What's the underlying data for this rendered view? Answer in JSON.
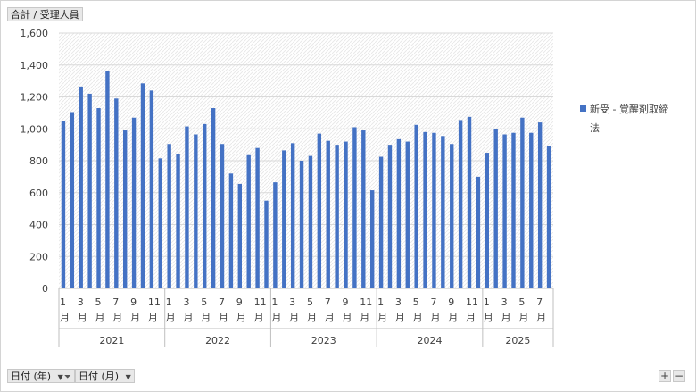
{
  "value_field_label": "合計 / 受理人員",
  "filter_buttons": [
    {
      "label": "日付 (年)",
      "has_filter": true
    },
    {
      "label": "日付 (月)",
      "has_filter": false
    }
  ],
  "zoom": {
    "plus": "+",
    "minus": "−"
  },
  "colors": {
    "bar": "#4472C4",
    "grid": "#d9d9d9",
    "axis": "#bfbfbf",
    "text": "#404040"
  },
  "chart_data": {
    "type": "bar",
    "ylim": [
      0,
      1600
    ],
    "yticks": [
      "0",
      "200",
      "400",
      "600",
      "800",
      "1,000",
      "1,200",
      "1,400",
      "1,600"
    ],
    "ytick_values": [
      0,
      200,
      400,
      600,
      800,
      1000,
      1200,
      1400,
      1600
    ],
    "legend": "新受 - 覚醒剤取締法",
    "month_suffix": "月",
    "years": [
      {
        "label": "2021",
        "months": [
          1,
          2,
          3,
          4,
          5,
          6,
          7,
          8,
          9,
          10,
          11,
          12
        ]
      },
      {
        "label": "2022",
        "months": [
          1,
          2,
          3,
          4,
          5,
          6,
          7,
          8,
          9,
          10,
          11,
          12
        ]
      },
      {
        "label": "2023",
        "months": [
          1,
          2,
          3,
          4,
          5,
          6,
          7,
          8,
          9,
          10,
          11,
          12
        ]
      },
      {
        "label": "2024",
        "months": [
          1,
          2,
          3,
          4,
          5,
          6,
          7,
          8,
          9,
          10,
          11,
          12
        ]
      },
      {
        "label": "2025",
        "months": [
          1,
          2,
          3,
          4,
          5,
          6,
          7,
          8
        ]
      }
    ],
    "series": [
      {
        "name": "新受 - 覚醒剤取締法",
        "values": [
          1050,
          1105,
          1265,
          1220,
          1130,
          1360,
          1190,
          990,
          1070,
          1285,
          1240,
          815,
          905,
          840,
          1015,
          965,
          1030,
          1130,
          905,
          720,
          655,
          835,
          880,
          550,
          665,
          865,
          910,
          800,
          830,
          970,
          925,
          900,
          920,
          1010,
          990,
          615,
          825,
          900,
          935,
          920,
          1025,
          980,
          975,
          955,
          905,
          1055,
          1075,
          700,
          850,
          1000,
          965,
          975,
          1070,
          975,
          1040,
          895
        ]
      }
    ]
  }
}
